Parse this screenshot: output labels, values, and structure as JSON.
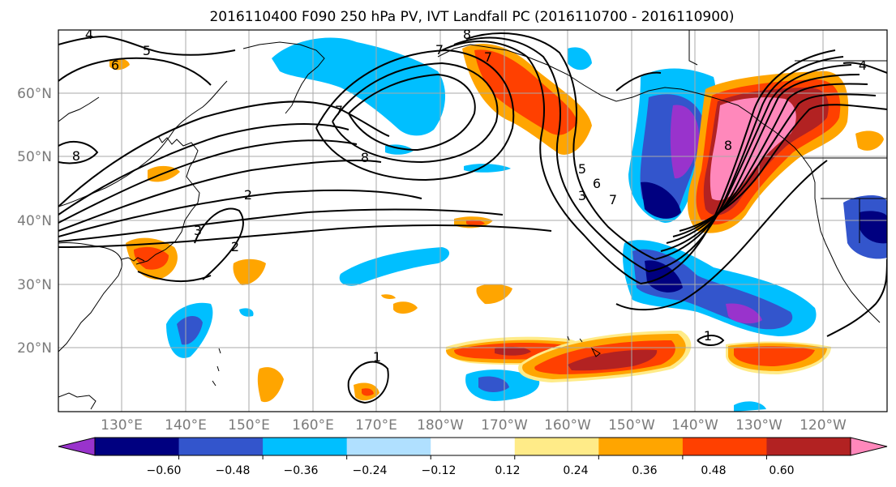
{
  "title": "2016110400 F090 250 hPa PV, IVT Landfall PC (2016110700 - 2016110900)",
  "lat_labels": [
    "60°N",
    "50°N",
    "40°N",
    "30°N",
    "20°N"
  ],
  "lon_labels": [
    "130°E",
    "140°E",
    "150°E",
    "160°E",
    "170°E",
    "180°W",
    "170°W",
    "160°W",
    "150°W",
    "140°W",
    "130°W",
    "120°W"
  ],
  "colorbar": {
    "colors": [
      "#9933cc",
      "#000080",
      "#3355cc",
      "#00bfff",
      "#b0e0ff",
      "#ffffff",
      "#ffeb88",
      "#ffa500",
      "#ff4000",
      "#b22222",
      "#ff88bb"
    ],
    "tick_labels": [
      "−0.60",
      "−0.48",
      "−0.36",
      "−0.24",
      "−0.12",
      "0.12",
      "0.24",
      "0.36",
      "0.48",
      "0.60"
    ]
  },
  "contour_labels": [
    "4",
    "5",
    "6",
    "8",
    "7",
    "7",
    "8",
    "8",
    "7",
    "2",
    "3",
    "2",
    "5",
    "6",
    "7",
    "3",
    "1",
    "1",
    "8",
    "4"
  ]
}
